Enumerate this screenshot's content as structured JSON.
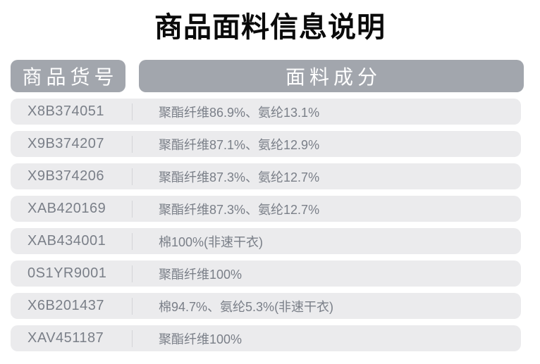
{
  "page": {
    "title": "商品面料信息说明"
  },
  "table": {
    "columns": [
      {
        "id": "sku",
        "label": "商品货号"
      },
      {
        "id": "fabric",
        "label": "面料成分"
      }
    ],
    "rows": [
      {
        "sku": "X8B374051",
        "fabric": "聚酯纤维86.9%、氨纶13.1%"
      },
      {
        "sku": "X9B374207",
        "fabric": "聚酯纤维87.1%、氨纶12.9%"
      },
      {
        "sku": "X9B374206",
        "fabric": "聚酯纤维87.3%、氨纶12.7%"
      },
      {
        "sku": "XAB420169",
        "fabric": "聚酯纤维87.3%、氨纶12.7%"
      },
      {
        "sku": "XAB434001",
        "fabric": "棉100%(非速干衣)"
      },
      {
        "sku": "0S1YR9001",
        "fabric": "聚酯纤维100%"
      },
      {
        "sku": "X6B201437",
        "fabric": "棉94.7%、氨纶5.3%(非速干衣)"
      },
      {
        "sku": "XAV451187",
        "fabric": "聚酯纤维100%"
      }
    ]
  },
  "colors": {
    "header_bg": "#a2a6ad",
    "header_text": "#ffffff",
    "row_bg": "#ebebed",
    "row_text": "#7a7f88",
    "divider": "#d3d4d8",
    "title_text": "#0a0a0a",
    "page_bg": "#ffffff"
  }
}
